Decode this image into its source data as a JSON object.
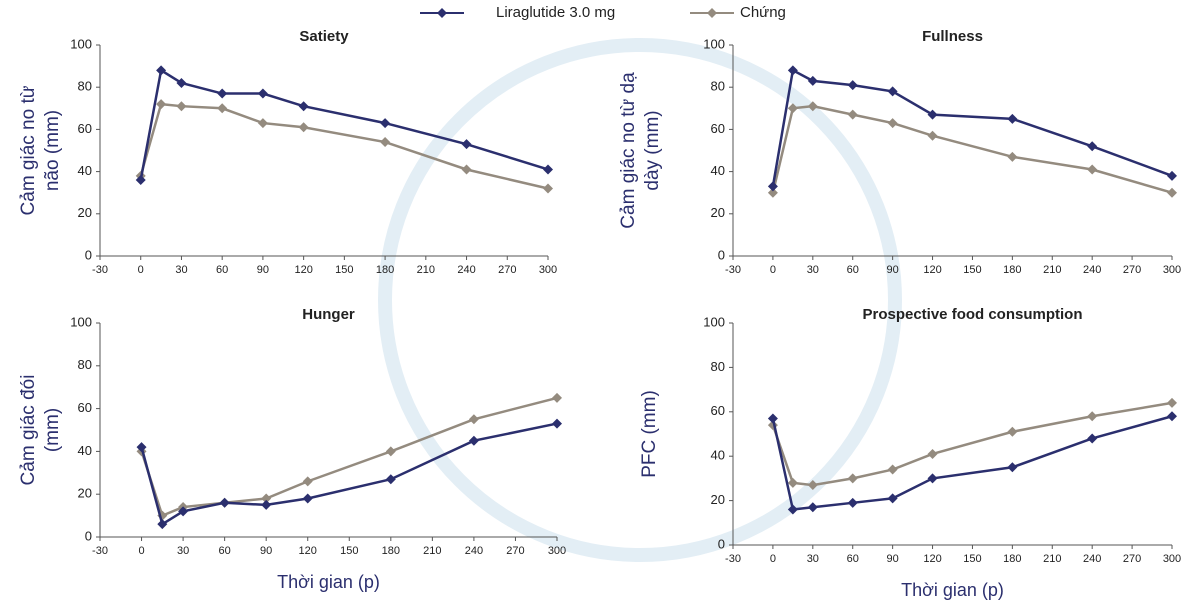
{
  "chart_data": [
    {
      "type": "line",
      "title": "Satiety",
      "ylabel": [
        "Cảm giác no từ",
        "não (mm)"
      ],
      "x": [
        0,
        15,
        30,
        60,
        90,
        120,
        180,
        240,
        300
      ],
      "series": [
        {
          "name": "Liraglutide 3.0 mg",
          "color": "#2b2f6e",
          "values": [
            36,
            88,
            82,
            77,
            77,
            71,
            63,
            53,
            41
          ]
        },
        {
          "name": "Chứng",
          "color": "#948b7f",
          "values": [
            38,
            72,
            71,
            70,
            63,
            61,
            54,
            41,
            32
          ]
        }
      ],
      "xlim": [
        -30,
        300
      ],
      "xticks": [
        -30,
        0,
        30,
        60,
        90,
        120,
        150,
        180,
        210,
        240,
        270,
        300
      ],
      "ylim": [
        0,
        100
      ],
      "yticks": [
        0,
        20,
        40,
        60,
        80,
        100
      ]
    },
    {
      "type": "line",
      "title": "Fullness",
      "ylabel": [
        "Cảm giác no từ dạ",
        "dày (mm)"
      ],
      "x": [
        0,
        15,
        30,
        60,
        90,
        120,
        180,
        240,
        300
      ],
      "series": [
        {
          "color": "#2b2f6e",
          "values": [
            33,
            88,
            83,
            81,
            78,
            67,
            65,
            52,
            38
          ]
        },
        {
          "color": "#948b7f",
          "values": [
            30,
            70,
            71,
            67,
            63,
            57,
            47,
            41,
            30
          ]
        }
      ],
      "xlim": [
        -30,
        300
      ],
      "xticks": [
        -30,
        0,
        30,
        60,
        90,
        120,
        150,
        180,
        210,
        240,
        270,
        300
      ],
      "ylim": [
        0,
        100
      ],
      "yticks": [
        0,
        20,
        40,
        60,
        80,
        100
      ]
    },
    {
      "type": "line",
      "title": "Hunger",
      "ylabel": [
        "Cảm giác đói",
        "(mm)"
      ],
      "xlabel": "Thời gian (p)",
      "x": [
        0,
        15,
        30,
        60,
        90,
        120,
        180,
        240,
        300
      ],
      "series": [
        {
          "color": "#2b2f6e",
          "values": [
            42,
            6,
            12,
            16,
            15,
            18,
            27,
            45,
            53
          ]
        },
        {
          "color": "#948b7f",
          "values": [
            40,
            10,
            14,
            16,
            18,
            26,
            40,
            55,
            65
          ]
        }
      ],
      "xlim": [
        -30,
        300
      ],
      "xticks": [
        -30,
        0,
        30,
        60,
        90,
        120,
        150,
        180,
        210,
        240,
        270,
        300
      ],
      "ylim": [
        0,
        100
      ],
      "yticks": [
        0,
        20,
        40,
        60,
        80,
        100
      ]
    },
    {
      "type": "line",
      "title": "Prospective food consumption",
      "ylabel": [
        "PFC (mm)"
      ],
      "xlabel": "Thời gian (p)",
      "x": [
        0,
        15,
        30,
        60,
        90,
        120,
        180,
        240,
        300
      ],
      "series": [
        {
          "color": "#2b2f6e",
          "values": [
            57,
            16,
            17,
            19,
            21,
            30,
            35,
            48,
            58
          ]
        },
        {
          "color": "#948b7f",
          "values": [
            54,
            28,
            27,
            30,
            34,
            41,
            51,
            58,
            64
          ]
        }
      ],
      "xlim": [
        -30,
        300
      ],
      "xticks": [
        -30,
        0,
        30,
        60,
        90,
        120,
        150,
        180,
        210,
        240,
        270,
        300
      ],
      "ylim": [
        0,
        100
      ],
      "yticks": [
        0,
        20,
        40,
        60,
        80,
        100
      ]
    }
  ]
}
